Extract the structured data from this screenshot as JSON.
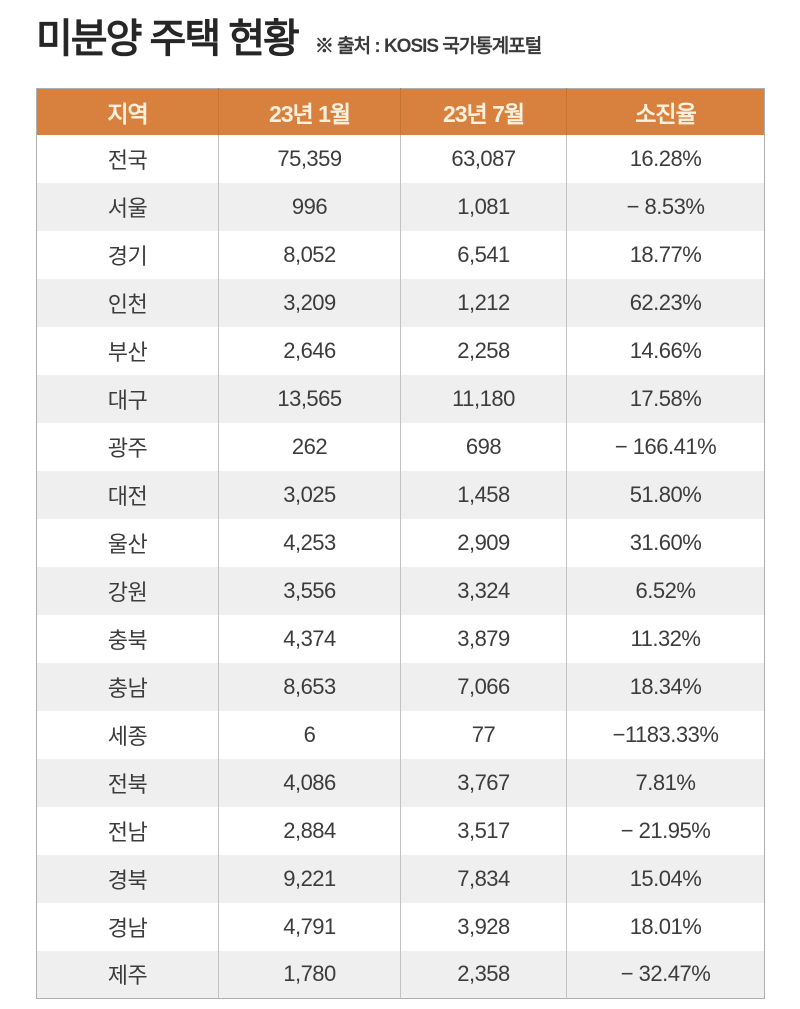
{
  "chart_data": {
    "type": "table",
    "title": "미분양 주택 현황",
    "source": "※ 출처 : KOSIS 국가통계포털",
    "columns": [
      "지역",
      "23년 1월",
      "23년 7월",
      "소진율"
    ],
    "rows": [
      {
        "region": "전국",
        "jan": "75,359",
        "jul": "63,087",
        "rate": "16.28%"
      },
      {
        "region": "서울",
        "jan": "996",
        "jul": "1,081",
        "rate": "− 8.53%"
      },
      {
        "region": "경기",
        "jan": "8,052",
        "jul": "6,541",
        "rate": "18.77%"
      },
      {
        "region": "인천",
        "jan": "3,209",
        "jul": "1,212",
        "rate": "62.23%"
      },
      {
        "region": "부산",
        "jan": "2,646",
        "jul": "2,258",
        "rate": "14.66%"
      },
      {
        "region": "대구",
        "jan": "13,565",
        "jul": "11,180",
        "rate": "17.58%"
      },
      {
        "region": "광주",
        "jan": "262",
        "jul": "698",
        "rate": "− 166.41%"
      },
      {
        "region": "대전",
        "jan": "3,025",
        "jul": "1,458",
        "rate": "51.80%"
      },
      {
        "region": "울산",
        "jan": "4,253",
        "jul": "2,909",
        "rate": "31.60%"
      },
      {
        "region": "강원",
        "jan": "3,556",
        "jul": "3,324",
        "rate": "6.52%"
      },
      {
        "region": "충북",
        "jan": "4,374",
        "jul": "3,879",
        "rate": "11.32%"
      },
      {
        "region": "충남",
        "jan": "8,653",
        "jul": "7,066",
        "rate": "18.34%"
      },
      {
        "region": "세종",
        "jan": "6",
        "jul": "77",
        "rate": "−1183.33%"
      },
      {
        "region": "전북",
        "jan": "4,086",
        "jul": "3,767",
        "rate": "7.81%"
      },
      {
        "region": "전남",
        "jan": "2,884",
        "jul": "3,517",
        "rate": "− 21.95%"
      },
      {
        "region": "경북",
        "jan": "9,221",
        "jul": "7,834",
        "rate": "15.04%"
      },
      {
        "region": "경남",
        "jan": "4,791",
        "jul": "3,928",
        "rate": "18.01%"
      },
      {
        "region": "제주",
        "jan": "1,780",
        "jul": "2,358",
        "rate": "− 32.47%"
      }
    ],
    "layout": {
      "header_bg": "#D8813F",
      "header_text": "#F9F0DE",
      "row_alt_bg": "#EFEFEF",
      "body_text": "#3C3C3C",
      "grid_line": "#C2C2C2",
      "outer_border": "#AEAEAE"
    }
  }
}
